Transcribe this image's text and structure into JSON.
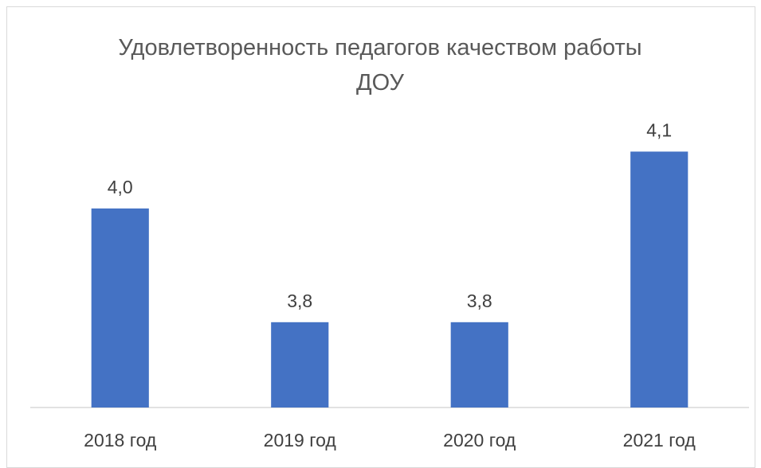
{
  "chart_data": {
    "type": "bar",
    "title": "Удовлетворенность педагогов качеством работы ДОУ",
    "categories": [
      "2018 год",
      "2019 год",
      "2020 год",
      "2021 год"
    ],
    "values": [
      4.0,
      3.8,
      3.8,
      4.1
    ],
    "value_labels": [
      "4,0",
      "3,8",
      "3,8",
      "4,1"
    ],
    "color": "#4472c4",
    "ylim": [
      3.65,
      4.2
    ]
  }
}
